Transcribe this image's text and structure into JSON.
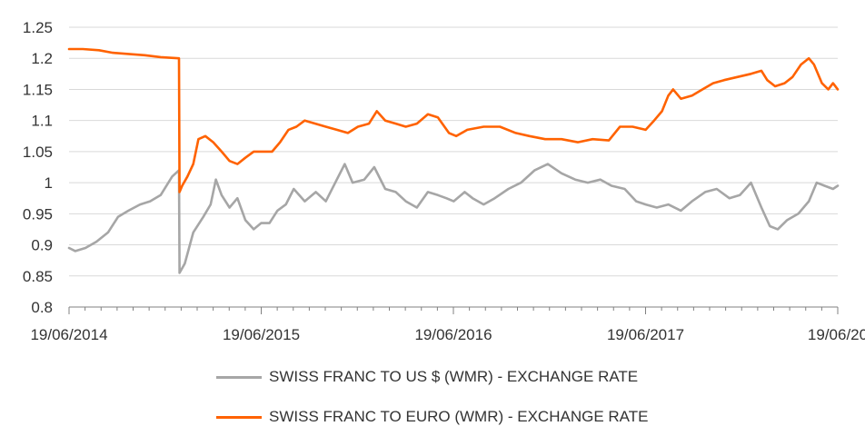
{
  "chart_data": {
    "type": "line",
    "title": "",
    "xlabel": "",
    "ylabel": "",
    "ylim": [
      0.8,
      1.25
    ],
    "y_ticks": [
      "0.8",
      "0.85",
      "0.9",
      "0.95",
      "1",
      "1.05",
      "1.1",
      "1.15",
      "1.2",
      "1.25"
    ],
    "x_ticks": [
      "19/06/2014",
      "19/06/2015",
      "19/06/2016",
      "19/06/2017",
      "19/06/20"
    ],
    "x_range": [
      "2014-06-19",
      "2018-06-19"
    ],
    "grid": "horizontal",
    "legend_position": "bottom",
    "colors": {
      "usd": "#a6a6a6",
      "eur": "#ff6200",
      "grid": "#d9d9d9",
      "axis": "#808080"
    },
    "series": [
      {
        "name": "SWISS FRANC TO US $ (WMR) - EXCHANGE RATE",
        "color": "#a6a6a6",
        "points": [
          [
            "2014-06-19",
            0.895
          ],
          [
            "2014-07-01",
            0.89
          ],
          [
            "2014-07-20",
            0.895
          ],
          [
            "2014-08-10",
            0.905
          ],
          [
            "2014-09-01",
            0.92
          ],
          [
            "2014-09-20",
            0.945
          ],
          [
            "2014-10-10",
            0.955
          ],
          [
            "2014-11-01",
            0.965
          ],
          [
            "2014-11-20",
            0.97
          ],
          [
            "2014-12-10",
            0.98
          ],
          [
            "2015-01-01",
            1.01
          ],
          [
            "2015-01-14",
            1.02
          ],
          [
            "2015-01-15",
            0.855
          ],
          [
            "2015-01-25",
            0.87
          ],
          [
            "2015-02-10",
            0.92
          ],
          [
            "2015-03-01",
            0.945
          ],
          [
            "2015-03-15",
            0.965
          ],
          [
            "2015-03-25",
            1.005
          ],
          [
            "2015-04-05",
            0.98
          ],
          [
            "2015-04-20",
            0.96
          ],
          [
            "2015-05-05",
            0.975
          ],
          [
            "2015-05-20",
            0.94
          ],
          [
            "2015-06-05",
            0.925
          ],
          [
            "2015-06-19",
            0.935
          ],
          [
            "2015-07-05",
            0.935
          ],
          [
            "2015-07-20",
            0.955
          ],
          [
            "2015-08-05",
            0.965
          ],
          [
            "2015-08-20",
            0.99
          ],
          [
            "2015-09-10",
            0.97
          ],
          [
            "2015-10-01",
            0.985
          ],
          [
            "2015-10-20",
            0.97
          ],
          [
            "2015-11-10",
            1.005
          ],
          [
            "2015-11-25",
            1.03
          ],
          [
            "2015-12-10",
            1.0
          ],
          [
            "2016-01-01",
            1.005
          ],
          [
            "2016-01-20",
            1.025
          ],
          [
            "2016-02-10",
            0.99
          ],
          [
            "2016-03-01",
            0.985
          ],
          [
            "2016-03-20",
            0.97
          ],
          [
            "2016-04-10",
            0.96
          ],
          [
            "2016-05-01",
            0.985
          ],
          [
            "2016-05-20",
            0.98
          ],
          [
            "2016-06-05",
            0.975
          ],
          [
            "2016-06-19",
            0.97
          ],
          [
            "2016-07-10",
            0.985
          ],
          [
            "2016-07-25",
            0.975
          ],
          [
            "2016-08-15",
            0.965
          ],
          [
            "2016-09-05",
            0.975
          ],
          [
            "2016-10-01",
            0.99
          ],
          [
            "2016-10-25",
            1.0
          ],
          [
            "2016-11-20",
            1.02
          ],
          [
            "2016-12-15",
            1.03
          ],
          [
            "2017-01-10",
            1.015
          ],
          [
            "2017-02-05",
            1.005
          ],
          [
            "2017-03-01",
            1.0
          ],
          [
            "2017-03-25",
            1.005
          ],
          [
            "2017-04-15",
            0.995
          ],
          [
            "2017-05-10",
            0.99
          ],
          [
            "2017-06-01",
            0.97
          ],
          [
            "2017-06-19",
            0.965
          ],
          [
            "2017-07-10",
            0.96
          ],
          [
            "2017-08-01",
            0.965
          ],
          [
            "2017-08-25",
            0.955
          ],
          [
            "2017-09-15",
            0.97
          ],
          [
            "2017-10-10",
            0.985
          ],
          [
            "2017-11-01",
            0.99
          ],
          [
            "2017-11-25",
            0.975
          ],
          [
            "2017-12-15",
            0.98
          ],
          [
            "2018-01-05",
            1.0
          ],
          [
            "2018-01-25",
            0.96
          ],
          [
            "2018-02-10",
            0.93
          ],
          [
            "2018-02-25",
            0.925
          ],
          [
            "2018-03-15",
            0.94
          ],
          [
            "2018-04-05",
            0.95
          ],
          [
            "2018-04-25",
            0.97
          ],
          [
            "2018-05-10",
            1.0
          ],
          [
            "2018-05-25",
            0.995
          ],
          [
            "2018-06-10",
            0.99
          ],
          [
            "2018-06-19",
            0.995
          ]
        ]
      },
      {
        "name": "SWISS FRANC TO EURO (WMR) - EXCHANGE RATE",
        "color": "#ff6200",
        "points": [
          [
            "2014-06-19",
            1.215
          ],
          [
            "2014-07-15",
            1.215
          ],
          [
            "2014-08-15",
            1.213
          ],
          [
            "2014-09-10",
            1.209
          ],
          [
            "2014-10-10",
            1.207
          ],
          [
            "2014-11-10",
            1.205
          ],
          [
            "2014-12-10",
            1.202
          ],
          [
            "2015-01-14",
            1.2
          ],
          [
            "2015-01-15",
            0.985
          ],
          [
            "2015-01-20",
            0.995
          ],
          [
            "2015-01-30",
            1.01
          ],
          [
            "2015-02-10",
            1.03
          ],
          [
            "2015-02-20",
            1.07
          ],
          [
            "2015-03-05",
            1.075
          ],
          [
            "2015-03-20",
            1.065
          ],
          [
            "2015-04-05",
            1.05
          ],
          [
            "2015-04-20",
            1.035
          ],
          [
            "2015-05-05",
            1.03
          ],
          [
            "2015-05-20",
            1.04
          ],
          [
            "2015-06-05",
            1.05
          ],
          [
            "2015-06-19",
            1.05
          ],
          [
            "2015-07-10",
            1.05
          ],
          [
            "2015-07-25",
            1.065
          ],
          [
            "2015-08-10",
            1.085
          ],
          [
            "2015-08-25",
            1.09
          ],
          [
            "2015-09-10",
            1.1
          ],
          [
            "2015-09-30",
            1.095
          ],
          [
            "2015-10-20",
            1.09
          ],
          [
            "2015-11-10",
            1.085
          ],
          [
            "2015-12-01",
            1.08
          ],
          [
            "2015-12-20",
            1.09
          ],
          [
            "2016-01-10",
            1.095
          ],
          [
            "2016-01-25",
            1.115
          ],
          [
            "2016-02-10",
            1.1
          ],
          [
            "2016-03-01",
            1.095
          ],
          [
            "2016-03-20",
            1.09
          ],
          [
            "2016-04-10",
            1.095
          ],
          [
            "2016-05-01",
            1.11
          ],
          [
            "2016-05-20",
            1.105
          ],
          [
            "2016-06-10",
            1.08
          ],
          [
            "2016-06-24",
            1.075
          ],
          [
            "2016-07-15",
            1.085
          ],
          [
            "2016-08-15",
            1.09
          ],
          [
            "2016-09-15",
            1.09
          ],
          [
            "2016-10-15",
            1.08
          ],
          [
            "2016-11-10",
            1.075
          ],
          [
            "2016-12-10",
            1.07
          ],
          [
            "2017-01-10",
            1.07
          ],
          [
            "2017-02-10",
            1.065
          ],
          [
            "2017-03-10",
            1.07
          ],
          [
            "2017-04-10",
            1.068
          ],
          [
            "2017-05-01",
            1.09
          ],
          [
            "2017-05-25",
            1.09
          ],
          [
            "2017-06-19",
            1.085
          ],
          [
            "2017-07-05",
            1.1
          ],
          [
            "2017-07-20",
            1.115
          ],
          [
            "2017-08-01",
            1.14
          ],
          [
            "2017-08-10",
            1.15
          ],
          [
            "2017-08-25",
            1.135
          ],
          [
            "2017-09-15",
            1.14
          ],
          [
            "2017-10-05",
            1.15
          ],
          [
            "2017-10-25",
            1.16
          ],
          [
            "2017-11-15",
            1.165
          ],
          [
            "2017-12-10",
            1.17
          ],
          [
            "2018-01-05",
            1.175
          ],
          [
            "2018-01-25",
            1.18
          ],
          [
            "2018-02-05",
            1.165
          ],
          [
            "2018-02-20",
            1.155
          ],
          [
            "2018-03-10",
            1.16
          ],
          [
            "2018-03-25",
            1.17
          ],
          [
            "2018-04-10",
            1.19
          ],
          [
            "2018-04-25",
            1.2
          ],
          [
            "2018-05-05",
            1.19
          ],
          [
            "2018-05-20",
            1.16
          ],
          [
            "2018-06-01",
            1.15
          ],
          [
            "2018-06-10",
            1.16
          ],
          [
            "2018-06-19",
            1.15
          ]
        ]
      }
    ]
  }
}
